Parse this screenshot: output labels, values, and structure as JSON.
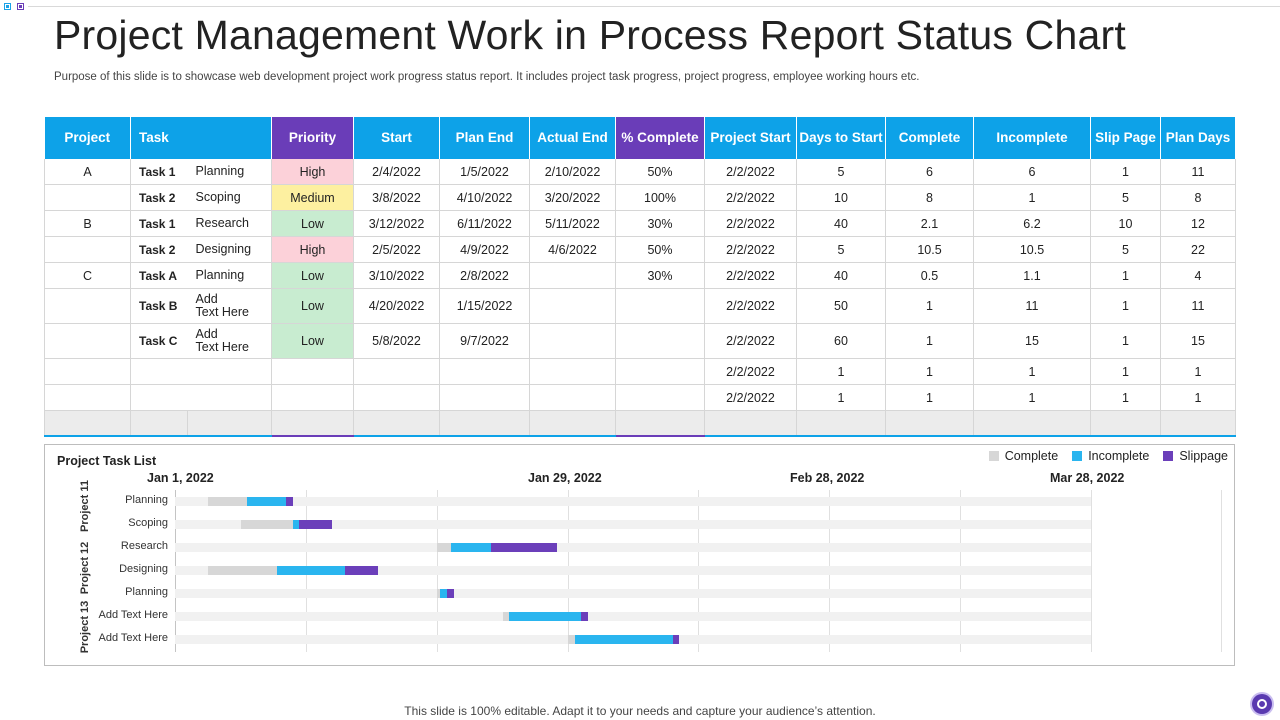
{
  "title": "Project Management Work in Process Report Status Chart",
  "subtitle": "Purpose of this slide is to showcase web development project work progress status report. It includes project task progress, project progress, employee working hours etc.",
  "table": {
    "headers": [
      "Project",
      "Task",
      "Priority",
      "Start",
      "Plan End",
      "Actual End",
      "% Complete",
      "Project Start",
      "Days to Start",
      "Complete",
      "Incomplete",
      "Slip Page",
      "Plan Days"
    ],
    "rows": [
      {
        "project": "A",
        "task_id": "Task 1",
        "task_name": "Planning",
        "priority": "High",
        "start": "2/4/2022",
        "plan_end": "1/5/2022",
        "actual_end": "2/10/2022",
        "pct": "50%",
        "project_start": "2/2/2022",
        "days_to_start": "5",
        "complete": "6",
        "incomplete": "6",
        "slip": "1",
        "plan_days": "11"
      },
      {
        "project": "",
        "task_id": "Task 2",
        "task_name": "Scoping",
        "priority": "Medium",
        "start": "3/8/2022",
        "plan_end": "4/10/2022",
        "actual_end": "3/20/2022",
        "pct": "100%",
        "project_start": "2/2/2022",
        "days_to_start": "10",
        "complete": "8",
        "incomplete": "1",
        "slip": "5",
        "plan_days": "8"
      },
      {
        "project": "B",
        "task_id": "Task 1",
        "task_name": "Research",
        "priority": "Low",
        "start": "3/12/2022",
        "plan_end": "6/11/2022",
        "actual_end": "5/11/2022",
        "pct": "30%",
        "project_start": "2/2/2022",
        "days_to_start": "40",
        "complete": "2.1",
        "incomplete": "6.2",
        "slip": "10",
        "plan_days": "12"
      },
      {
        "project": "",
        "task_id": "Task 2",
        "task_name": "Designing",
        "priority": "High",
        "start": "2/5/2022",
        "plan_end": "4/9/2022",
        "actual_end": "4/6/2022",
        "pct": "50%",
        "project_start": "2/2/2022",
        "days_to_start": "5",
        "complete": "10.5",
        "incomplete": "10.5",
        "slip": "5",
        "plan_days": "22"
      },
      {
        "project": "C",
        "task_id": "Task A",
        "task_name": "Planning",
        "priority": "Low",
        "start": "3/10/2022",
        "plan_end": "2/8/2022",
        "actual_end": "",
        "pct": "30%",
        "project_start": "2/2/2022",
        "days_to_start": "40",
        "complete": "0.5",
        "incomplete": "1.1",
        "slip": "1",
        "plan_days": "4"
      },
      {
        "project": "",
        "task_id": "Task B",
        "task_name_1": "Add",
        "task_name_2": "Text Here",
        "priority": "Low",
        "start": "4/20/2022",
        "plan_end": "1/15/2022",
        "actual_end": "",
        "pct": "",
        "project_start": "2/2/2022",
        "days_to_start": "50",
        "complete": "1",
        "incomplete": "11",
        "slip": "1",
        "plan_days": "11"
      },
      {
        "project": "",
        "task_id": "Task C",
        "task_name_1": "Add",
        "task_name_2": "Text Here",
        "priority": "Low",
        "start": "5/8/2022",
        "plan_end": "9/7/2022",
        "actual_end": "",
        "pct": "",
        "project_start": "2/2/2022",
        "days_to_start": "60",
        "complete": "1",
        "incomplete": "15",
        "slip": "1",
        "plan_days": "15"
      },
      {
        "project": "",
        "task_id": "",
        "task_name": "",
        "priority": "",
        "start": "",
        "plan_end": "",
        "actual_end": "",
        "pct": "",
        "project_start": "2/2/2022",
        "days_to_start": "1",
        "complete": "1",
        "incomplete": "1",
        "slip": "1",
        "plan_days": "1"
      },
      {
        "project": "",
        "task_id": "",
        "task_name": "",
        "priority": "",
        "start": "",
        "plan_end": "",
        "actual_end": "",
        "pct": "",
        "project_start": "2/2/2022",
        "days_to_start": "1",
        "complete": "1",
        "incomplete": "1",
        "slip": "1",
        "plan_days": "1"
      }
    ]
  },
  "gantt": {
    "title": "Project Task List",
    "legend": {
      "complete": "Complete",
      "incomplete": "Incomplete",
      "slippage": "Slippage"
    },
    "dates": [
      "Jan 1, 2022",
      "Jan 29, 2022",
      "Feb 28, 2022",
      "Mar 28, 2022"
    ],
    "groups": [
      "Project 11",
      "Project 12",
      "Project 13"
    ],
    "rows": [
      "Planning",
      "Scoping",
      "Research",
      "Designing",
      "Planning",
      "Add Text Here",
      "Add Text Here"
    ]
  },
  "chart_data": {
    "type": "bar",
    "title": "Project Task List",
    "orientation": "horizontal-stacked",
    "categories": [
      "Planning",
      "Scoping",
      "Research",
      "Designing",
      "Planning",
      "Add Text Here",
      "Add Text Here"
    ],
    "series": [
      {
        "name": "Days to Start",
        "values": [
          5,
          10,
          40,
          5,
          40,
          50,
          60
        ]
      },
      {
        "name": "Complete",
        "values": [
          6,
          8,
          2.1,
          10.5,
          0.5,
          1,
          1
        ]
      },
      {
        "name": "Incomplete",
        "values": [
          6,
          1,
          6.2,
          10.5,
          1.1,
          11,
          15
        ]
      },
      {
        "name": "Slippage",
        "values": [
          1,
          5,
          10,
          5,
          1,
          1,
          1
        ]
      }
    ],
    "legend": [
      "Complete",
      "Incomplete",
      "Slippage"
    ],
    "legend_position": "top-right",
    "colors": {
      "start": "#f1f1f1",
      "complete": "#d7d7d7",
      "incomplete": "#2ab5ef",
      "slippage": "#6b3fba"
    },
    "grid": true
  },
  "footer": "This slide is 100% editable. Adapt it to your needs and capture your audience’s attention."
}
